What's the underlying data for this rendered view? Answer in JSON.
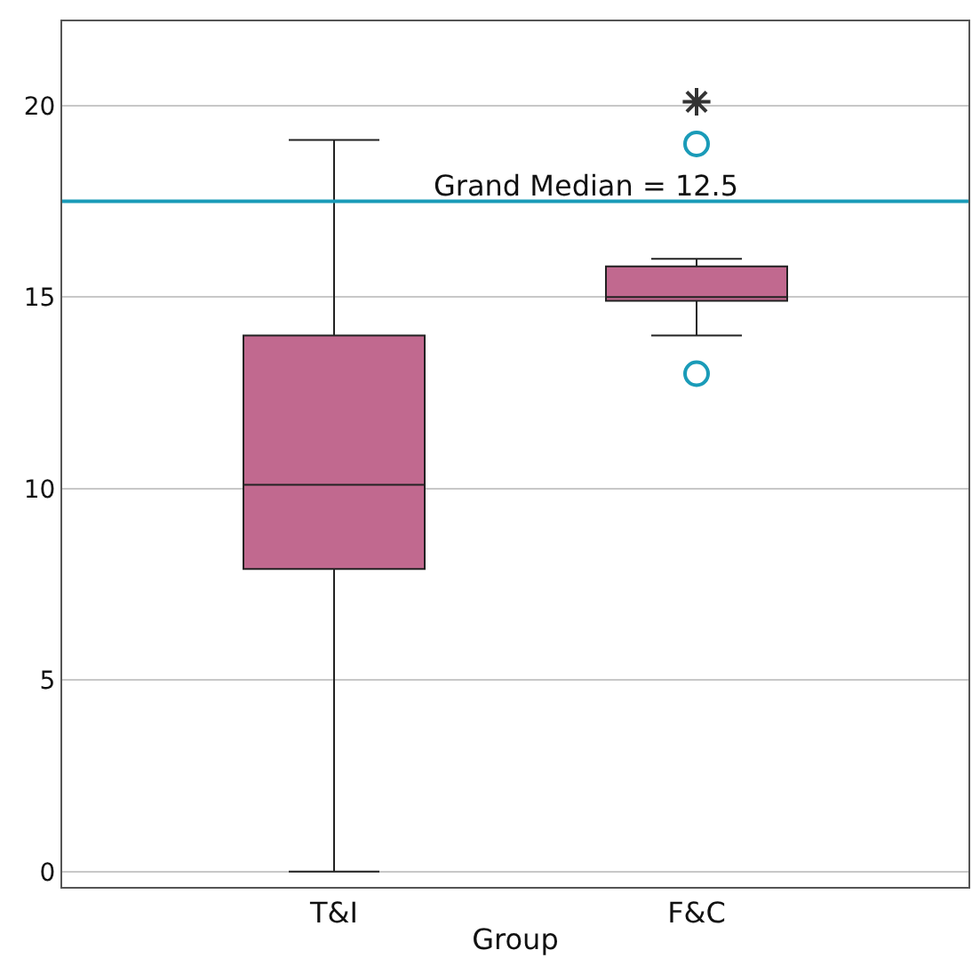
{
  "chart_data": {
    "type": "box",
    "xlabel": "Group",
    "categories": [
      "T&I",
      "F&C"
    ],
    "series": [
      {
        "color": "#c1698f",
        "boxes": [
          {
            "low": 0,
            "q1": 7.9,
            "median": 10.1,
            "q3": 14.0,
            "high": 19.1
          },
          {
            "low": 14.0,
            "q1": 14.9,
            "median": 15.0,
            "q3": 15.8,
            "high": 16.0
          }
        ]
      },
      {
        "type": "scatter",
        "color": "#1a9bb8",
        "marker": "circle",
        "x": [
          "F&C",
          "F&C"
        ],
        "values": [
          13.0,
          19.0
        ]
      },
      {
        "type": "scatter",
        "color": "#333333",
        "marker": "cross",
        "x": [
          "F&C"
        ],
        "values": [
          20.1
        ]
      }
    ],
    "ylim": [
      -0.4,
      22.2
    ],
    "yticks": [
      0,
      5,
      10,
      15,
      20
    ],
    "grid": "y",
    "annotations": [
      "Grand Median = 12.5"
    ],
    "ref_lines": [
      {
        "axis": "y",
        "value": 17.5,
        "color": "#1a9bb8"
      }
    ]
  }
}
